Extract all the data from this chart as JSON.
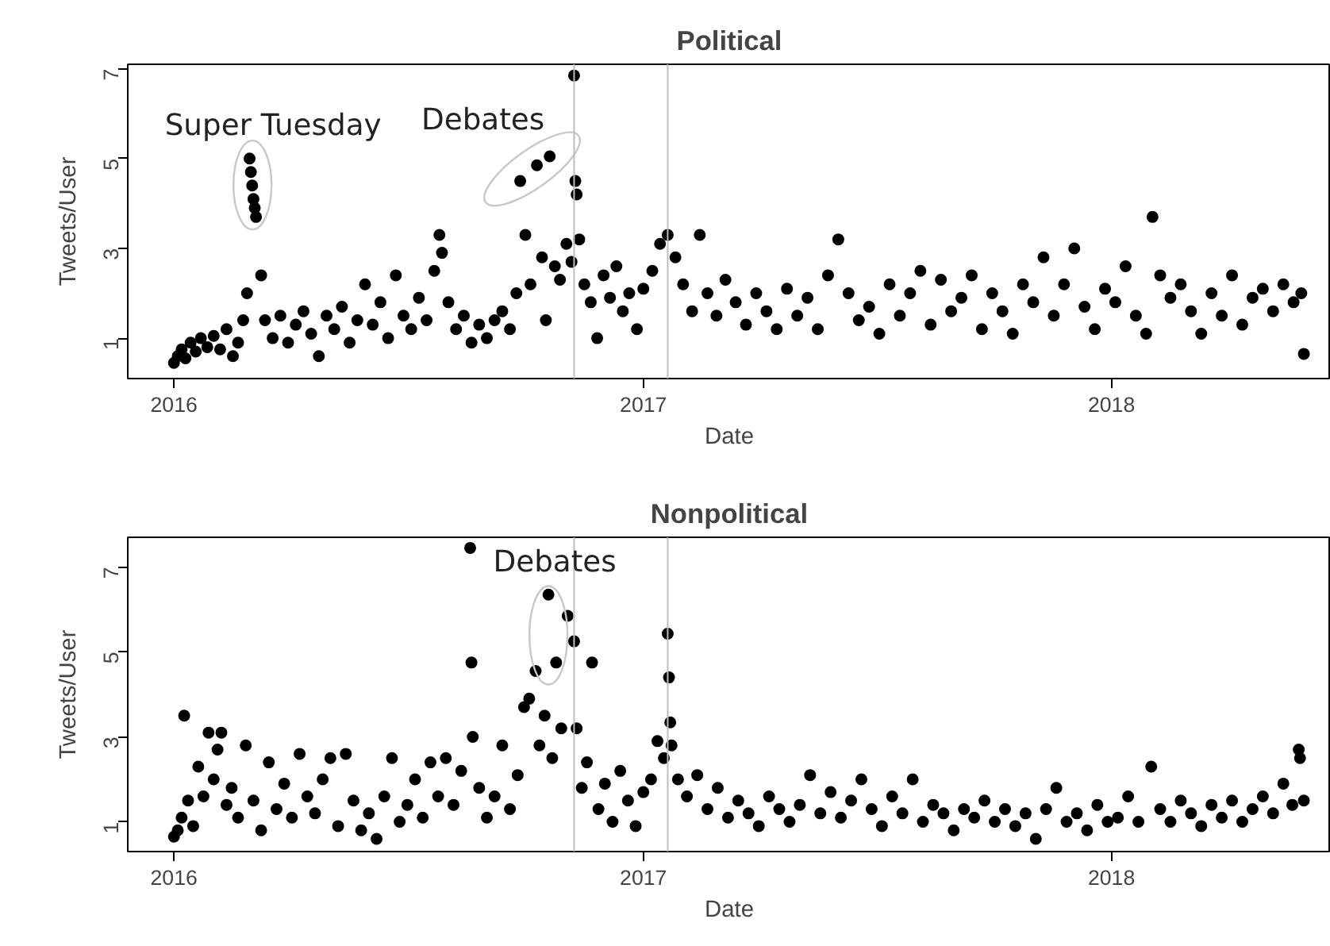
{
  "chart_data": [
    {
      "type": "scatter",
      "title": "Political",
      "xlabel": "Date",
      "ylabel": "Tweets/User",
      "marker": "circle",
      "grid": false,
      "color": "#000000",
      "xlim": [
        "2015-11-26",
        "2018-06-21"
      ],
      "ylim": [
        0.1,
        7.1
      ],
      "xticks": [
        {
          "value": "2016-01-01",
          "label": "2016"
        },
        {
          "value": "2017-01-01",
          "label": "2017"
        },
        {
          "value": "2018-01-01",
          "label": "2018"
        }
      ],
      "yticks": [
        1,
        3,
        5,
        7
      ],
      "ref_lines": [
        {
          "axis": "x",
          "value": "2016-11-08",
          "label": null,
          "color": "#bebebe"
        },
        {
          "axis": "x",
          "value": "2017-01-20",
          "label": null,
          "color": "#bebebe"
        }
      ],
      "annotations": [
        {
          "text": "Super Tuesday",
          "x": "2016-03-01",
          "y": 4.7
        },
        {
          "text": "Debates",
          "x": "2016-10-10",
          "y": 4.85
        }
      ],
      "x": [
        "2016-01-01",
        "2016-01-04",
        "2016-01-07",
        "2016-01-10",
        "2016-01-14",
        "2016-01-18",
        "2016-01-22",
        "2016-01-27",
        "2016-02-01",
        "2016-02-06",
        "2016-02-11",
        "2016-02-16",
        "2016-02-20",
        "2016-02-24",
        "2016-02-27",
        "2016-02-29",
        "2016-03-01",
        "2016-03-02",
        "2016-03-03",
        "2016-03-04",
        "2016-03-05",
        "2016-03-09",
        "2016-03-12",
        "2016-03-18",
        "2016-03-24",
        "2016-03-30",
        "2016-04-05",
        "2016-04-11",
        "2016-04-17",
        "2016-04-23",
        "2016-04-29",
        "2016-05-05",
        "2016-05-11",
        "2016-05-17",
        "2016-05-23",
        "2016-05-29",
        "2016-06-04",
        "2016-06-10",
        "2016-06-16",
        "2016-06-22",
        "2016-06-28",
        "2016-07-04",
        "2016-07-10",
        "2016-07-16",
        "2016-07-22",
        "2016-07-26",
        "2016-07-28",
        "2016-08-02",
        "2016-08-08",
        "2016-08-14",
        "2016-08-20",
        "2016-08-26",
        "2016-09-01",
        "2016-09-07",
        "2016-09-13",
        "2016-09-19",
        "2016-09-24",
        "2016-09-27",
        "2016-10-01",
        "2016-10-05",
        "2016-10-10",
        "2016-10-14",
        "2016-10-17",
        "2016-10-20",
        "2016-10-24",
        "2016-10-28",
        "2016-11-02",
        "2016-11-06",
        "2016-11-08",
        "2016-11-09",
        "2016-11-10",
        "2016-11-12",
        "2016-11-16",
        "2016-11-21",
        "2016-11-26",
        "2016-12-01",
        "2016-12-06",
        "2016-12-11",
        "2016-12-16",
        "2016-12-21",
        "2016-12-27",
        "2017-01-01",
        "2017-01-08",
        "2017-01-14",
        "2017-01-20",
        "2017-01-26",
        "2017-02-01",
        "2017-02-08",
        "2017-02-14",
        "2017-02-20",
        "2017-02-27",
        "2017-03-06",
        "2017-03-14",
        "2017-03-22",
        "2017-03-30",
        "2017-04-07",
        "2017-04-15",
        "2017-04-23",
        "2017-05-01",
        "2017-05-09",
        "2017-05-17",
        "2017-05-25",
        "2017-06-02",
        "2017-06-10",
        "2017-06-18",
        "2017-06-26",
        "2017-07-04",
        "2017-07-12",
        "2017-07-20",
        "2017-07-28",
        "2017-08-05",
        "2017-08-13",
        "2017-08-21",
        "2017-08-29",
        "2017-09-06",
        "2017-09-14",
        "2017-09-22",
        "2017-09-30",
        "2017-10-08",
        "2017-10-16",
        "2017-10-24",
        "2017-11-01",
        "2017-11-09",
        "2017-11-17",
        "2017-11-25",
        "2017-12-03",
        "2017-12-11",
        "2017-12-19",
        "2017-12-27",
        "2018-01-04",
        "2018-01-12",
        "2018-01-20",
        "2018-01-28",
        "2018-02-02",
        "2018-02-08",
        "2018-02-16",
        "2018-02-24",
        "2018-03-04",
        "2018-03-12",
        "2018-03-20",
        "2018-03-28",
        "2018-04-05",
        "2018-04-13",
        "2018-04-21",
        "2018-04-29",
        "2018-05-07",
        "2018-05-15",
        "2018-05-23",
        "2018-05-29",
        "2018-05-31"
      ],
      "values": [
        0.45,
        0.6,
        0.75,
        0.55,
        0.9,
        0.7,
        1.0,
        0.8,
        1.05,
        0.75,
        1.2,
        0.6,
        0.9,
        1.4,
        2.0,
        5.0,
        4.7,
        4.4,
        4.1,
        3.9,
        3.7,
        2.4,
        1.4,
        1.0,
        1.5,
        0.9,
        1.3,
        1.6,
        1.1,
        0.6,
        1.5,
        1.2,
        1.7,
        0.9,
        1.4,
        2.2,
        1.3,
        1.8,
        1.0,
        2.4,
        1.5,
        1.2,
        1.9,
        1.4,
        2.5,
        3.3,
        2.9,
        1.8,
        1.2,
        1.5,
        0.9,
        1.3,
        1.0,
        1.4,
        1.6,
        1.2,
        2.0,
        4.5,
        3.3,
        2.2,
        4.85,
        2.8,
        1.4,
        5.05,
        2.6,
        2.3,
        3.1,
        2.7,
        6.85,
        4.5,
        4.2,
        3.2,
        2.2,
        1.8,
        1.0,
        2.4,
        1.9,
        2.6,
        1.6,
        2.0,
        1.2,
        2.1,
        2.5,
        3.1,
        3.3,
        2.8,
        2.2,
        1.6,
        3.3,
        2.0,
        1.5,
        2.3,
        1.8,
        1.3,
        2.0,
        1.6,
        1.2,
        2.1,
        1.5,
        1.9,
        1.2,
        2.4,
        3.2,
        2.0,
        1.4,
        1.7,
        1.1,
        2.2,
        1.5,
        2.0,
        2.5,
        1.3,
        2.3,
        1.6,
        1.9,
        2.4,
        1.2,
        2.0,
        1.6,
        1.1,
        2.2,
        1.8,
        2.8,
        1.5,
        2.2,
        3.0,
        1.7,
        1.2,
        2.1,
        1.8,
        2.6,
        1.5,
        1.1,
        3.7,
        2.4,
        1.9,
        2.2,
        1.6,
        1.1,
        2.0,
        1.5,
        2.4,
        1.3,
        1.9,
        2.1,
        1.6,
        2.2,
        1.8,
        2.0,
        0.65
      ]
    },
    {
      "type": "scatter",
      "title": "Nonpolitical",
      "xlabel": "Date",
      "ylabel": "Tweets/User",
      "marker": "circle",
      "grid": false,
      "color": "#000000",
      "xlim": [
        "2015-11-26",
        "2018-06-21"
      ],
      "ylim": [
        0.3,
        7.7
      ],
      "xticks": [
        {
          "value": "2016-01-01",
          "label": "2016"
        },
        {
          "value": "2017-01-01",
          "label": "2017"
        },
        {
          "value": "2018-01-01",
          "label": "2018"
        }
      ],
      "yticks": [
        1,
        3,
        5,
        7
      ],
      "ref_lines": [
        {
          "axis": "x",
          "value": "2016-11-08",
          "label": null,
          "color": "#bebebe"
        },
        {
          "axis": "x",
          "value": "2017-01-20",
          "label": null,
          "color": "#bebebe"
        }
      ],
      "annotations": [
        {
          "text": "Debates",
          "x": "2016-10-19",
          "y": 6.35
        }
      ],
      "x": [
        "2016-01-01",
        "2016-01-04",
        "2016-01-07",
        "2016-01-09",
        "2016-01-12",
        "2016-01-16",
        "2016-01-20",
        "2016-01-24",
        "2016-01-28",
        "2016-02-01",
        "2016-02-04",
        "2016-02-07",
        "2016-02-11",
        "2016-02-15",
        "2016-02-20",
        "2016-02-26",
        "2016-03-03",
        "2016-03-09",
        "2016-03-15",
        "2016-03-21",
        "2016-03-27",
        "2016-04-02",
        "2016-04-08",
        "2016-04-14",
        "2016-04-20",
        "2016-04-26",
        "2016-05-02",
        "2016-05-08",
        "2016-05-14",
        "2016-05-20",
        "2016-05-26",
        "2016-06-01",
        "2016-06-07",
        "2016-06-13",
        "2016-06-19",
        "2016-06-25",
        "2016-07-01",
        "2016-07-07",
        "2016-07-13",
        "2016-07-19",
        "2016-07-25",
        "2016-07-31",
        "2016-08-06",
        "2016-08-12",
        "2016-08-19",
        "2016-08-20",
        "2016-08-21",
        "2016-08-26",
        "2016-09-01",
        "2016-09-07",
        "2016-09-13",
        "2016-09-19",
        "2016-09-25",
        "2016-09-30",
        "2016-10-04",
        "2016-10-09",
        "2016-10-12",
        "2016-10-16",
        "2016-10-19",
        "2016-10-22",
        "2016-10-25",
        "2016-10-29",
        "2016-11-03",
        "2016-11-08",
        "2016-11-10",
        "2016-11-14",
        "2016-11-18",
        "2016-11-22",
        "2016-11-27",
        "2016-12-02",
        "2016-12-08",
        "2016-12-14",
        "2016-12-20",
        "2016-12-26",
        "2017-01-01",
        "2017-01-07",
        "2017-01-12",
        "2017-01-17",
        "2017-01-20",
        "2017-01-21",
        "2017-01-22",
        "2017-01-23",
        "2017-01-28",
        "2017-02-04",
        "2017-02-12",
        "2017-02-20",
        "2017-02-28",
        "2017-03-08",
        "2017-03-16",
        "2017-03-24",
        "2017-04-01",
        "2017-04-09",
        "2017-04-17",
        "2017-04-25",
        "2017-05-03",
        "2017-05-11",
        "2017-05-19",
        "2017-05-27",
        "2017-06-04",
        "2017-06-12",
        "2017-06-20",
        "2017-06-28",
        "2017-07-06",
        "2017-07-14",
        "2017-07-22",
        "2017-07-30",
        "2017-08-07",
        "2017-08-15",
        "2017-08-23",
        "2017-08-31",
        "2017-09-08",
        "2017-09-16",
        "2017-09-24",
        "2017-10-02",
        "2017-10-10",
        "2017-10-18",
        "2017-10-26",
        "2017-11-03",
        "2017-11-11",
        "2017-11-19",
        "2017-11-27",
        "2017-12-05",
        "2017-12-13",
        "2017-12-21",
        "2017-12-29",
        "2018-01-06",
        "2018-01-14",
        "2018-01-22",
        "2018-02-01",
        "2018-02-08",
        "2018-02-16",
        "2018-02-24",
        "2018-03-04",
        "2018-03-12",
        "2018-03-20",
        "2018-03-28",
        "2018-04-05",
        "2018-04-13",
        "2018-04-21",
        "2018-04-29",
        "2018-05-07",
        "2018-05-15",
        "2018-05-22",
        "2018-05-27",
        "2018-05-28",
        "2018-05-31"
      ],
      "values": [
        0.65,
        0.8,
        1.1,
        3.5,
        1.5,
        0.9,
        2.3,
        1.6,
        3.1,
        2.0,
        2.7,
        3.1,
        1.4,
        1.8,
        1.1,
        2.8,
        1.5,
        0.8,
        2.4,
        1.3,
        1.9,
        1.1,
        2.6,
        1.6,
        1.2,
        2.0,
        2.5,
        0.9,
        2.6,
        1.5,
        0.8,
        1.2,
        0.6,
        1.6,
        2.5,
        1.0,
        1.4,
        2.0,
        1.1,
        2.4,
        1.6,
        2.5,
        1.4,
        2.2,
        7.45,
        4.75,
        3.0,
        1.8,
        1.1,
        1.6,
        2.8,
        1.3,
        2.1,
        3.7,
        3.9,
        4.55,
        2.8,
        3.5,
        6.35,
        2.5,
        4.75,
        3.2,
        5.85,
        5.25,
        3.2,
        1.8,
        2.4,
        4.75,
        1.3,
        1.9,
        1.0,
        2.2,
        1.5,
        0.9,
        1.7,
        2.0,
        2.9,
        2.5,
        5.43,
        4.4,
        3.34,
        2.8,
        2.0,
        1.6,
        2.1,
        1.3,
        1.8,
        1.1,
        1.5,
        1.2,
        0.9,
        1.6,
        1.3,
        1.0,
        1.4,
        2.1,
        1.2,
        1.7,
        1.1,
        1.5,
        2.0,
        1.3,
        0.9,
        1.6,
        1.2,
        2.0,
        1.0,
        1.4,
        1.2,
        0.8,
        1.3,
        1.1,
        1.5,
        1.0,
        1.3,
        0.9,
        1.2,
        0.6,
        1.3,
        1.8,
        1.0,
        1.2,
        0.8,
        1.4,
        1.0,
        1.1,
        1.6,
        1.0,
        2.3,
        1.3,
        1.0,
        1.5,
        1.2,
        0.9,
        1.4,
        1.1,
        1.5,
        1.0,
        1.3,
        1.6,
        1.2,
        1.9,
        1.4,
        2.7,
        2.5,
        1.5
      ]
    }
  ]
}
